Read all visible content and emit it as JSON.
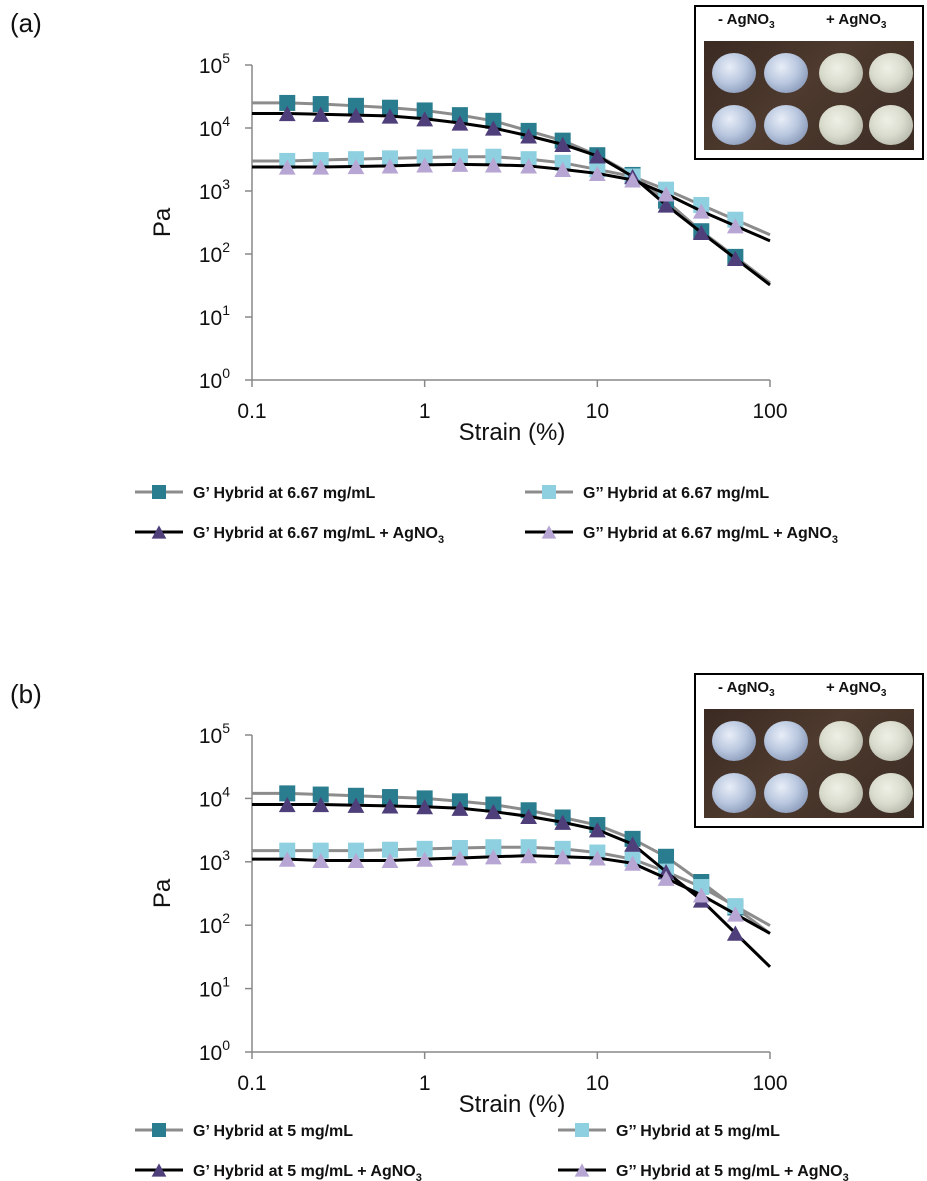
{
  "figure": {
    "panels": [
      {
        "label": "(a)",
        "ylabel": "Pa",
        "xlabel": "Strain (%)",
        "xticks": [
          "0.1",
          "1",
          "10",
          "100"
        ],
        "inset": {
          "left_label": "- AgNO3",
          "right_label": "+ AgNO3"
        },
        "legend": [
          "G’ Hybrid at 6.67 mg/mL",
          "G’’ Hybrid at 6.67 mg/mL",
          "G’ Hybrid at 6.67 mg/mL + AgNO3",
          "G’’ Hybrid at 6.67 mg/mL + AgNO3"
        ]
      },
      {
        "label": "(b)",
        "ylabel": "Pa",
        "xlabel": "Strain (%)",
        "xticks": [
          "0.1",
          "1",
          "10",
          "100"
        ],
        "inset": {
          "left_label": "- AgNO3",
          "right_label": "+ AgNO3"
        },
        "legend": [
          "G’ Hybrid at 5 mg/mL",
          "G’’ Hybrid at 5 mg/mL",
          "G’ Hybrid at 5 mg/mL + AgNO3",
          "G’’ Hybrid at 5 mg/mL + AgNO3"
        ]
      }
    ]
  },
  "colors": {
    "g_prime": "#2a7d8e",
    "g_double_prime": "#8fd0e0",
    "g_prime_ag": "#4e3f7a",
    "g_double_prime_ag": "#b7a6d3",
    "line_plain": "#8c8c8c",
    "line_ag": "#000000"
  },
  "chart_data": [
    {
      "type": "line",
      "xlabel": "Strain (%)",
      "ylabel": "Pa",
      "x_scale": "log",
      "y_scale": "log",
      "xlim": [
        0.1,
        100
      ],
      "ylim": [
        1,
        100000
      ],
      "x": [
        0.16,
        0.25,
        0.4,
        0.63,
        1.0,
        1.6,
        2.5,
        4.0,
        6.3,
        10,
        16,
        25,
        40,
        63
      ],
      "series": [
        {
          "name": "G’ Hybrid at 6.67 mg/mL",
          "marker": "square",
          "values": [
            25000,
            24000,
            22500,
            21000,
            19000,
            16000,
            13000,
            9000,
            6300,
            3700,
            1800,
            700,
            230,
            90
          ]
        },
        {
          "name": "G’’ Hybrid at 6.67 mg/mL",
          "marker": "square",
          "values": [
            3000,
            3100,
            3200,
            3300,
            3400,
            3500,
            3500,
            3200,
            2800,
            2200,
            1700,
            1050,
            600,
            350
          ]
        },
        {
          "name": "G’ Hybrid at 6.67 mg/mL + AgNO3",
          "marker": "triangle",
          "values": [
            17000,
            16500,
            16000,
            15500,
            14000,
            12000,
            10000,
            7500,
            5500,
            3600,
            1700,
            600,
            220,
            85
          ]
        },
        {
          "name": "G’’ Hybrid at 6.67 mg/mL + AgNO3",
          "marker": "triangle",
          "values": [
            2400,
            2400,
            2450,
            2500,
            2600,
            2650,
            2600,
            2500,
            2200,
            1900,
            1500,
            900,
            480,
            280
          ]
        }
      ]
    },
    {
      "type": "line",
      "xlabel": "Strain (%)",
      "ylabel": "Pa",
      "x_scale": "log",
      "y_scale": "log",
      "xlim": [
        0.1,
        100
      ],
      "ylim": [
        1,
        100000
      ],
      "x": [
        0.16,
        0.25,
        0.4,
        0.63,
        1.0,
        1.6,
        2.5,
        4.0,
        6.3,
        10,
        16,
        25,
        40,
        63
      ],
      "series": [
        {
          "name": "G’ Hybrid at 5 mg/mL",
          "marker": "square",
          "values": [
            12000,
            11500,
            11000,
            10500,
            10000,
            9000,
            8000,
            6500,
            5000,
            3800,
            2300,
            1200,
            480,
            190
          ]
        },
        {
          "name": "G’’ Hybrid at 5 mg/mL",
          "marker": "square",
          "values": [
            1500,
            1500,
            1500,
            1550,
            1600,
            1650,
            1700,
            1700,
            1600,
            1400,
            1100,
            700,
            400,
            200
          ]
        },
        {
          "name": "G’ Hybrid at 5 mg/mL + AgNO3",
          "marker": "triangle",
          "values": [
            8000,
            8000,
            7800,
            7600,
            7400,
            7000,
            6200,
            5200,
            4200,
            3200,
            1900,
            700,
            250,
            75
          ]
        },
        {
          "name": "G’’ Hybrid at 5 mg/mL + AgNO3",
          "marker": "triangle",
          "values": [
            1100,
            1050,
            1050,
            1050,
            1100,
            1150,
            1200,
            1250,
            1200,
            1150,
            950,
            550,
            300,
            150
          ]
        }
      ]
    }
  ]
}
